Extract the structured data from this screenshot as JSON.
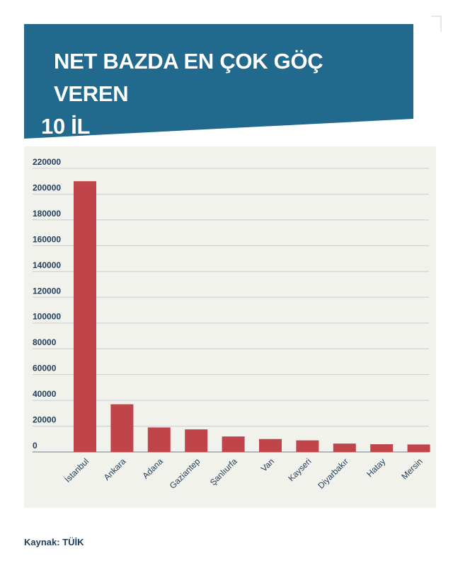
{
  "title": {
    "line1": "NET BAZDA EN ÇOK GÖÇ VEREN",
    "line2": "10 İL"
  },
  "source": "Kaynak: TÜİK",
  "colors": {
    "banner": "#216a8e",
    "bar": "#c0454a",
    "panel": "#f2f2ec",
    "grid": "#c9cdd2",
    "text": "#1f3d5a"
  },
  "chart_data": {
    "type": "bar",
    "categories": [
      "İstanbul",
      "Ankara",
      "Adana",
      "Gaziantep",
      "Şanlıurfa",
      "Van",
      "Kayseri",
      "Diyarbakır",
      "Hatay",
      "Mersin"
    ],
    "values": [
      210000,
      37000,
      19000,
      17500,
      12000,
      10000,
      9000,
      6500,
      6000,
      5800
    ],
    "ylim": [
      0,
      220000
    ],
    "yticks": [
      "0",
      "20000",
      "40000",
      "60000",
      "80000",
      "100000",
      "120000",
      "140000",
      "160000",
      "180000",
      "200000",
      "220000"
    ],
    "grid": true,
    "legend": "none"
  }
}
